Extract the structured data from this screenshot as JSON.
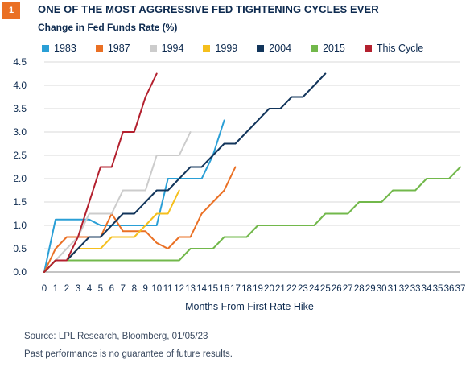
{
  "header": {
    "badge": "1",
    "title": "ONE OF THE MOST AGGRESSIVE FED TIGHTENING CYCLES EVER",
    "subtitle": "Change in Fed Funds Rate (%)"
  },
  "footer": {
    "source": "Source: LPL Research, Bloomberg, 01/05/23",
    "disclaimer": "Past performance is no guarantee of future results."
  },
  "colors": {
    "accent": "#ea7024",
    "grid": "#d9d9d9",
    "text": "#0d2a4f"
  },
  "chart_data": {
    "type": "line",
    "title": "ONE OF THE MOST AGGRESSIVE FED TIGHTENING CYCLES EVER",
    "ylabel": "Change in Fed Funds Rate (%)",
    "xlabel": "Months From First Rate Hike",
    "xlim": [
      0,
      37
    ],
    "ylim": [
      0,
      4.5
    ],
    "x_ticks": [
      0,
      1,
      2,
      3,
      4,
      5,
      6,
      7,
      8,
      9,
      10,
      11,
      12,
      13,
      14,
      15,
      16,
      17,
      18,
      19,
      20,
      21,
      22,
      23,
      24,
      25,
      26,
      27,
      28,
      29,
      30,
      31,
      32,
      33,
      34,
      35,
      36,
      37
    ],
    "y_ticks": [
      "0.0",
      "0.5",
      "1.0",
      "1.5",
      "2.0",
      "2.5",
      "3.0",
      "3.5",
      "4.0",
      "4.5"
    ],
    "grid": "horizontal",
    "legend_position": "top",
    "series": [
      {
        "name": "1983",
        "color": "#2a9fd6",
        "x": [
          0,
          1,
          2,
          3,
          4,
          5,
          6,
          7,
          8,
          9,
          10,
          11,
          12,
          13,
          14,
          15,
          16
        ],
        "y": [
          0,
          1.125,
          1.125,
          1.125,
          1.125,
          1.0,
          1.0,
          1.0,
          1.0,
          1.0,
          1.0,
          2.0,
          2.0,
          2.0,
          2.0,
          2.5,
          3.25
        ]
      },
      {
        "name": "1987",
        "color": "#ea7024",
        "x": [
          0,
          1,
          2,
          3,
          4,
          5,
          6,
          7,
          8,
          9,
          10,
          11,
          12,
          13,
          14,
          15,
          16,
          17
        ],
        "y": [
          0,
          0.5,
          0.75,
          0.75,
          0.75,
          0.75,
          1.25,
          0.875,
          0.875,
          0.875,
          0.625,
          0.5,
          0.75,
          0.75,
          1.25,
          1.5,
          1.75,
          2.25
        ]
      },
      {
        "name": "1994",
        "color": "#cccccc",
        "x": [
          0,
          1,
          2,
          3,
          4,
          5,
          6,
          7,
          8,
          9,
          10,
          11,
          12,
          13
        ],
        "y": [
          0,
          0.25,
          0.5,
          0.75,
          1.25,
          1.25,
          1.25,
          1.75,
          1.75,
          1.75,
          2.5,
          2.5,
          2.5,
          3.0
        ]
      },
      {
        "name": "1999",
        "color": "#f5bf1d",
        "x": [
          0,
          1,
          2,
          3,
          4,
          5,
          6,
          7,
          8,
          9,
          10,
          11,
          12
        ],
        "y": [
          0,
          0.25,
          0.25,
          0.5,
          0.5,
          0.5,
          0.75,
          0.75,
          0.75,
          1.0,
          1.25,
          1.25,
          1.75
        ]
      },
      {
        "name": "2004",
        "color": "#12355b",
        "x": [
          0,
          1,
          2,
          3,
          4,
          5,
          6,
          7,
          8,
          9,
          10,
          11,
          12,
          13,
          14,
          15,
          16,
          17,
          18,
          19,
          20,
          21,
          22,
          23,
          24,
          25
        ],
        "y": [
          0,
          0.25,
          0.25,
          0.5,
          0.75,
          0.75,
          1.0,
          1.25,
          1.25,
          1.5,
          1.75,
          1.75,
          2.0,
          2.25,
          2.25,
          2.5,
          2.75,
          2.75,
          3.0,
          3.25,
          3.5,
          3.5,
          3.75,
          3.75,
          4.0,
          4.25
        ]
      },
      {
        "name": "2015",
        "color": "#72b84b",
        "x": [
          0,
          1,
          2,
          3,
          4,
          5,
          6,
          7,
          8,
          9,
          10,
          11,
          12,
          13,
          14,
          15,
          16,
          17,
          18,
          19,
          20,
          21,
          22,
          23,
          24,
          25,
          26,
          27,
          28,
          29,
          30,
          31,
          32,
          33,
          34,
          35,
          36,
          37
        ],
        "y": [
          0,
          0.25,
          0.25,
          0.25,
          0.25,
          0.25,
          0.25,
          0.25,
          0.25,
          0.25,
          0.25,
          0.25,
          0.25,
          0.5,
          0.5,
          0.5,
          0.75,
          0.75,
          0.75,
          1.0,
          1.0,
          1.0,
          1.0,
          1.0,
          1.0,
          1.25,
          1.25,
          1.25,
          1.5,
          1.5,
          1.5,
          1.75,
          1.75,
          1.75,
          2.0,
          2.0,
          2.0,
          2.25
        ]
      },
      {
        "name": "This Cycle",
        "color": "#b3202e",
        "x": [
          0,
          1,
          2,
          3,
          4,
          5,
          6,
          7,
          8,
          9,
          10
        ],
        "y": [
          0,
          0.25,
          0.25,
          0.75,
          1.5,
          2.25,
          2.25,
          3.0,
          3.0,
          3.75,
          4.25
        ]
      }
    ]
  }
}
